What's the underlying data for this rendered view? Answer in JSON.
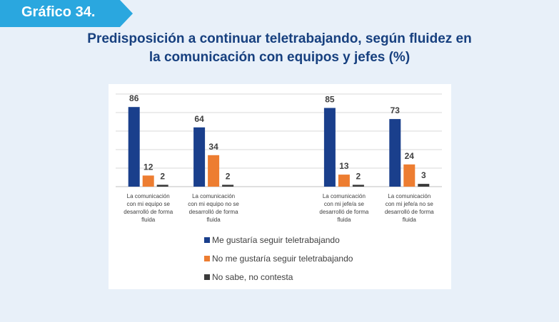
{
  "badge": {
    "text": "Gráfico 34."
  },
  "title": {
    "line1": "Predisposición a continuar teletrabajando, según fluidez en",
    "line2": "la comunicación con equipos y jefes (%)"
  },
  "colors": {
    "background": "#e8f0f9",
    "badge": "#2aa7df",
    "title": "#17407f",
    "series": [
      "#1a3f8c",
      "#ed7d31",
      "#3b3b3b"
    ]
  },
  "chart_data": {
    "type": "bar",
    "categories": [
      "La comunicación con mi equipo se desarrolló de forma fluida",
      "La comunicación con mi equipo no se desarrolló de forma fluida",
      "",
      "La comunicación con mi jefe/a se desarrolló de forma fluida",
      "La comunicación con mi jefe/a no se desarrolló de forma fluida"
    ],
    "category_lines": [
      [
        "La comunicación",
        "con mi equipo se",
        "desarrolló de forma",
        "fluida"
      ],
      [
        "La comunicación",
        "con mi equipo no se",
        "desarrolló de forma",
        "fluida"
      ],
      [],
      [
        "La comunicación",
        "con mi jefe/a se",
        "desarrolló de forma",
        "fluida"
      ],
      [
        "La comunicación",
        "con mi jefe/a no se",
        "desarrolló de forma",
        "fluida"
      ]
    ],
    "series": [
      {
        "name": "Me gustaría seguir teletrabajando",
        "values": [
          86,
          64,
          null,
          85,
          73
        ]
      },
      {
        "name": "No me gustaría seguir teletrabajando",
        "values": [
          12,
          34,
          null,
          13,
          24
        ]
      },
      {
        "name": "No sabe, no contesta",
        "values": [
          2,
          2,
          null,
          2,
          3
        ]
      }
    ],
    "ylim": [
      0,
      100
    ],
    "grid": true,
    "legend_position": "bottom"
  }
}
